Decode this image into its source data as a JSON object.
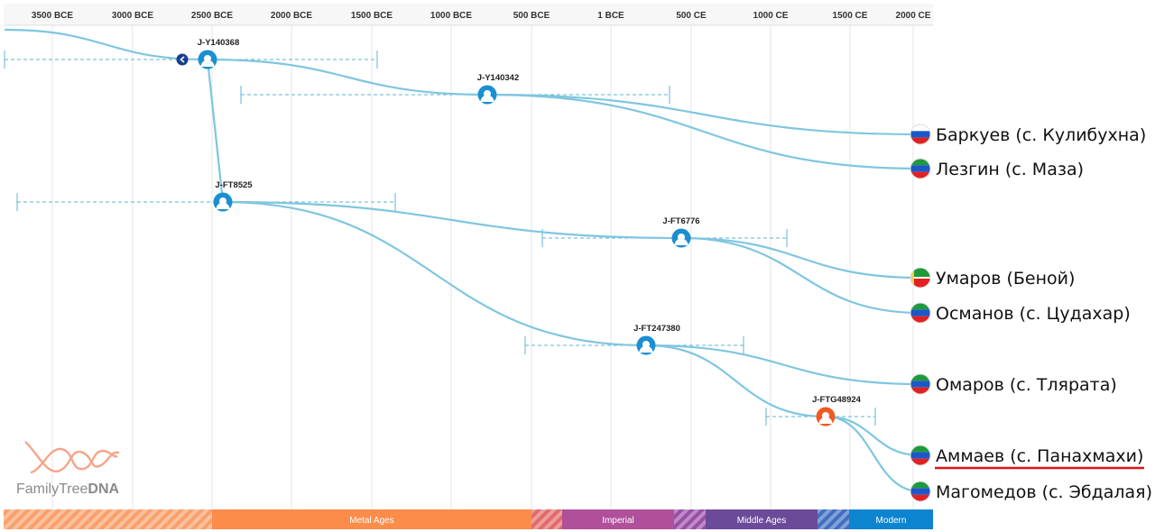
{
  "timeline": {
    "ticks": [
      "3500 BCE",
      "3000 BCE",
      "2500 BCE",
      "2000 BCE",
      "1500 BCE",
      "1000 BCE",
      "500 BCE",
      "1 BCE",
      "500 CE",
      "1000 CE",
      "1500 CE",
      "2000 CE"
    ]
  },
  "nodes": [
    {
      "id": "n1",
      "label": "J-Y140368",
      "color": "#1a8fd1"
    },
    {
      "id": "n2",
      "label": "J-Y140342",
      "color": "#1a8fd1"
    },
    {
      "id": "n3",
      "label": "J-FT8525",
      "color": "#1a8fd1"
    },
    {
      "id": "n4",
      "label": "J-FT6776",
      "color": "#1a8fd1"
    },
    {
      "id": "n5",
      "label": "J-FT247380",
      "color": "#1a8fd1"
    },
    {
      "id": "n6",
      "label": "J-FTG48924",
      "color": "#f05a22"
    }
  ],
  "leaves": [
    {
      "label": "Баркуев (с. Кулибухна)",
      "flag": "russia",
      "highlight": false
    },
    {
      "label": "Лезгин (с. Маза)",
      "flag": "dagestan",
      "highlight": false
    },
    {
      "label": "Умаров (Беной)",
      "flag": "chechnya",
      "highlight": false
    },
    {
      "label": "Османов (с. Цудахар)",
      "flag": "dagestan",
      "highlight": false
    },
    {
      "label": "Омаров (с. Тлярата)",
      "flag": "dagestan",
      "highlight": false
    },
    {
      "label": "Аммаев (с. Панахмахи)",
      "flag": "dagestan",
      "highlight": true
    },
    {
      "label": "Магомедов (с. Эбдалая)",
      "flag": "dagestan",
      "highlight": false
    }
  ],
  "eras": [
    {
      "label": "",
      "color": "#f9a06a",
      "striped": true
    },
    {
      "label": "Metal Ages",
      "color": "#fb8c4a",
      "striped": false
    },
    {
      "label": "",
      "color": "#e36a6a",
      "striped": true
    },
    {
      "label": "Imperial",
      "color": "#b04f9a",
      "striped": false
    },
    {
      "label": "",
      "color": "#9a4ea6",
      "striped": true
    },
    {
      "label": "Middle Ages",
      "color": "#6b4a9a",
      "striped": false
    },
    {
      "label": "",
      "color": "#3f6fc0",
      "striped": true
    },
    {
      "label": "Modern",
      "color": "#0d84d0",
      "striped": false
    }
  ],
  "logo": {
    "text_regular": "FamilyTree",
    "text_bold": "DNA"
  },
  "colors": {
    "branch": "#7fc6e0",
    "range": "#5fb3d1",
    "grid": "#e6e6e6",
    "highlight_underline": "#e0141c"
  }
}
